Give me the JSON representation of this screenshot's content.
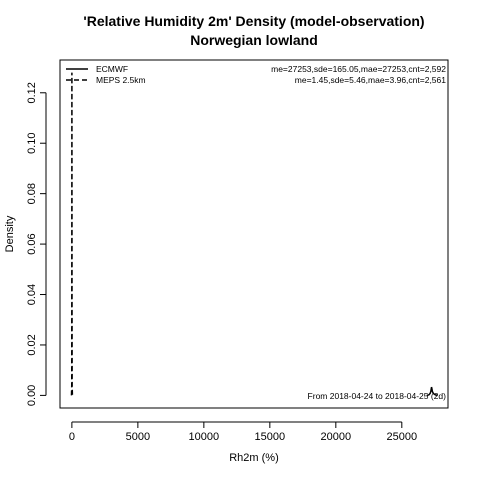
{
  "chart_data": {
    "type": "line",
    "title": "'Relative Humidity 2m' Density (model-observation)",
    "subtitle": "Norwegian lowland",
    "xlabel": "Rh2m (%)",
    "ylabel": "Density",
    "xlim": [
      -900,
      28500
    ],
    "ylim": [
      -0.005,
      0.133
    ],
    "x_ticks": [
      0,
      5000,
      10000,
      15000,
      20000,
      25000
    ],
    "x_tick_labels": [
      "0",
      "5000",
      "10000",
      "15000",
      "20000",
      "25000"
    ],
    "y_ticks": [
      0,
      0.02,
      0.04,
      0.06,
      0.08,
      0.1,
      0.12
    ],
    "y_tick_labels": [
      "0.00",
      "0.02",
      "0.04",
      "0.06",
      "0.08",
      "0.10",
      "0.12"
    ],
    "grid": false,
    "legend_position": "top-left",
    "footnote": "From 2018-04-24 to 2018-04-25 (2d)",
    "series": [
      {
        "name": "ECMWF",
        "line_style": "solid",
        "stats": "me=27253,sde=165.05,mae=27253,cnt=2,592",
        "x": [
          26900,
          27050,
          27150,
          27200,
          27230,
          27253,
          27280,
          27320,
          27400,
          27550,
          27700
        ],
        "y": [
          0.0,
          0.0002,
          0.0008,
          0.0016,
          0.0026,
          0.0033,
          0.0026,
          0.0015,
          0.0007,
          0.0002,
          0.0
        ]
      },
      {
        "name": "MEPS 2.5km",
        "line_style": "dashed",
        "stats": "me=1.45,sde=5.46,mae=3.96,cnt=2,561",
        "x": [
          -30,
          -10,
          -5,
          0,
          1.45,
          5,
          10,
          20,
          40
        ],
        "y": [
          0.0,
          0.004,
          0.04,
          0.1,
          0.128,
          0.1,
          0.04,
          0.004,
          0.0
        ]
      }
    ]
  }
}
